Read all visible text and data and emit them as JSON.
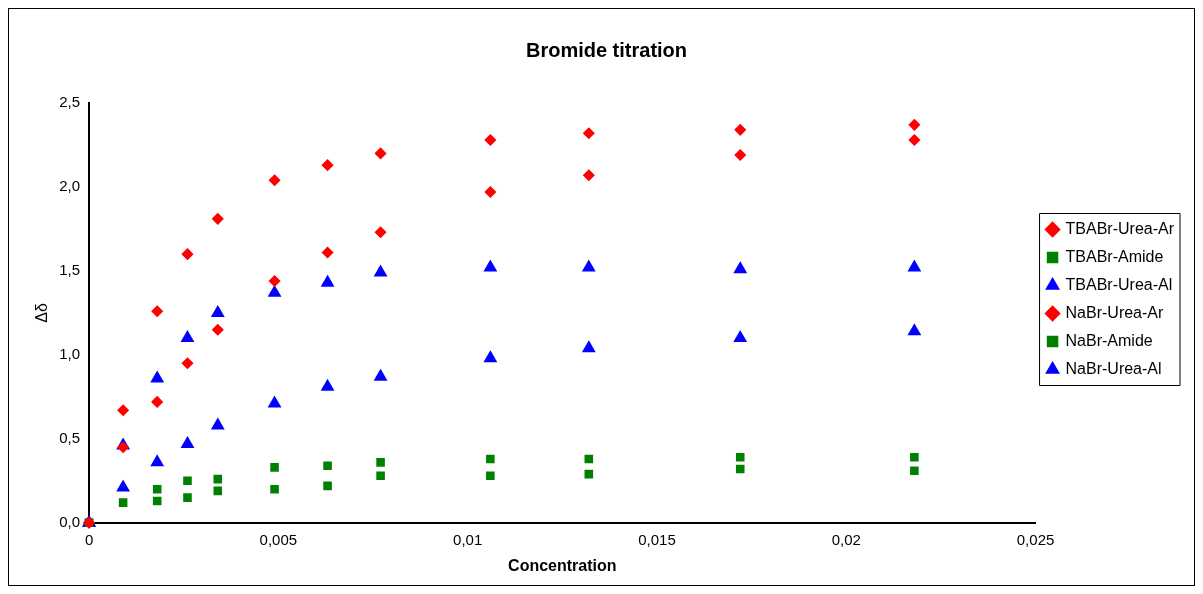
{
  "chart_data": {
    "type": "scatter",
    "title": "Bromide titration",
    "xlabel": "Concentration",
    "ylabel": "Δδ",
    "x": [
      0,
      0.0009,
      0.0018,
      0.0026,
      0.0034,
      0.0049,
      0.0063,
      0.0077,
      0.0106,
      0.0132,
      0.0172,
      0.0218
    ],
    "xlim": [
      0,
      0.025
    ],
    "xticks": [
      0,
      {
        "value": 0.005,
        "label": "0,005"
      },
      {
        "value": 0.01,
        "label": "0,01"
      },
      {
        "value": 0.015,
        "label": "0,015"
      },
      {
        "value": 0.02,
        "label": "0,02"
      },
      {
        "value": 0.025,
        "label": "0,025"
      }
    ],
    "ylim": [
      0,
      2.5
    ],
    "yticks": [
      {
        "value": 0,
        "label": "0,0"
      },
      {
        "value": 0.5,
        "label": "0,5"
      },
      {
        "value": 1,
        "label": "1,0"
      },
      {
        "value": 1.5,
        "label": "1,5"
      },
      {
        "value": 2,
        "label": "2,0"
      },
      {
        "value": 2.5,
        "label": "2,5"
      }
    ],
    "grid": false,
    "legend": "right",
    "series": [
      {
        "name": "TBABr-Urea-Ar",
        "color": "#ff0000",
        "marker": "diamond",
        "values": [
          0,
          0.45,
          0.72,
          0.95,
          1.15,
          1.44,
          1.61,
          1.73,
          1.97,
          2.07,
          2.19,
          2.28
        ]
      },
      {
        "name": "TBABr-Amide",
        "color": "#008000",
        "marker": "square",
        "values": [
          0,
          0.12,
          0.13,
          0.15,
          0.19,
          0.2,
          0.22,
          0.28,
          0.28,
          0.29,
          0.32,
          0.31
        ]
      },
      {
        "name": "TBABr-Urea-Al",
        "color": "#0000ff",
        "marker": "triangle",
        "values": [
          0,
          0.21,
          0.36,
          0.47,
          0.58,
          0.71,
          0.81,
          0.87,
          0.98,
          1.04,
          1.1,
          1.14
        ]
      },
      {
        "name": "NaBr-Urea-Ar",
        "color": "#ff0000",
        "marker": "diamond",
        "values": [
          0,
          0.67,
          1.26,
          1.6,
          1.81,
          2.04,
          2.13,
          2.2,
          2.28,
          2.32,
          2.34,
          2.37
        ]
      },
      {
        "name": "NaBr-Amide",
        "color": "#008000",
        "marker": "square",
        "values": [
          0,
          null,
          0.2,
          0.25,
          0.26,
          0.33,
          0.34,
          0.36,
          0.38,
          0.38,
          0.39,
          0.39
        ]
      },
      {
        "name": "NaBr-Urea-Al",
        "color": "#0000ff",
        "marker": "triangle",
        "values": [
          0,
          0.46,
          0.86,
          1.1,
          1.25,
          1.37,
          1.43,
          1.49,
          1.52,
          1.52,
          1.51,
          1.52
        ]
      }
    ]
  }
}
